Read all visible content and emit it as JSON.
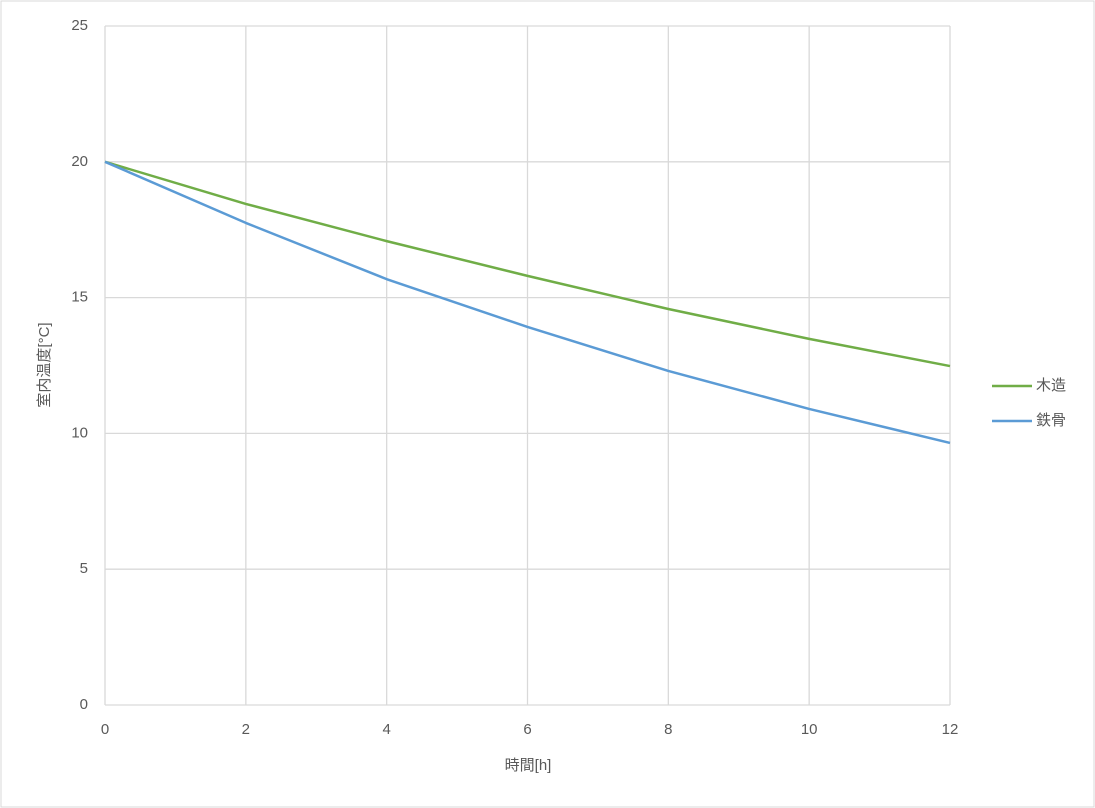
{
  "chart_data": {
    "type": "line",
    "x": [
      0,
      2,
      4,
      6,
      8,
      10,
      12
    ],
    "series": [
      {
        "name": "木造",
        "color": "#70ad47",
        "values": [
          20,
          18.45,
          17.08,
          15.8,
          14.58,
          13.48,
          12.48
        ]
      },
      {
        "name": "鉄骨",
        "color": "#5b9bd5",
        "values": [
          20,
          17.75,
          15.68,
          13.92,
          12.3,
          10.9,
          9.65
        ]
      }
    ],
    "xlim": [
      0,
      12
    ],
    "xticks": [
      0,
      2,
      4,
      6,
      8,
      10,
      12
    ],
    "ylim": [
      0,
      25
    ],
    "yticks": [
      0,
      5,
      10,
      15,
      20,
      25
    ],
    "xlabel": "時間[h]",
    "ylabel": "室内温度[°C]",
    "grid": true,
    "legend": "right"
  }
}
